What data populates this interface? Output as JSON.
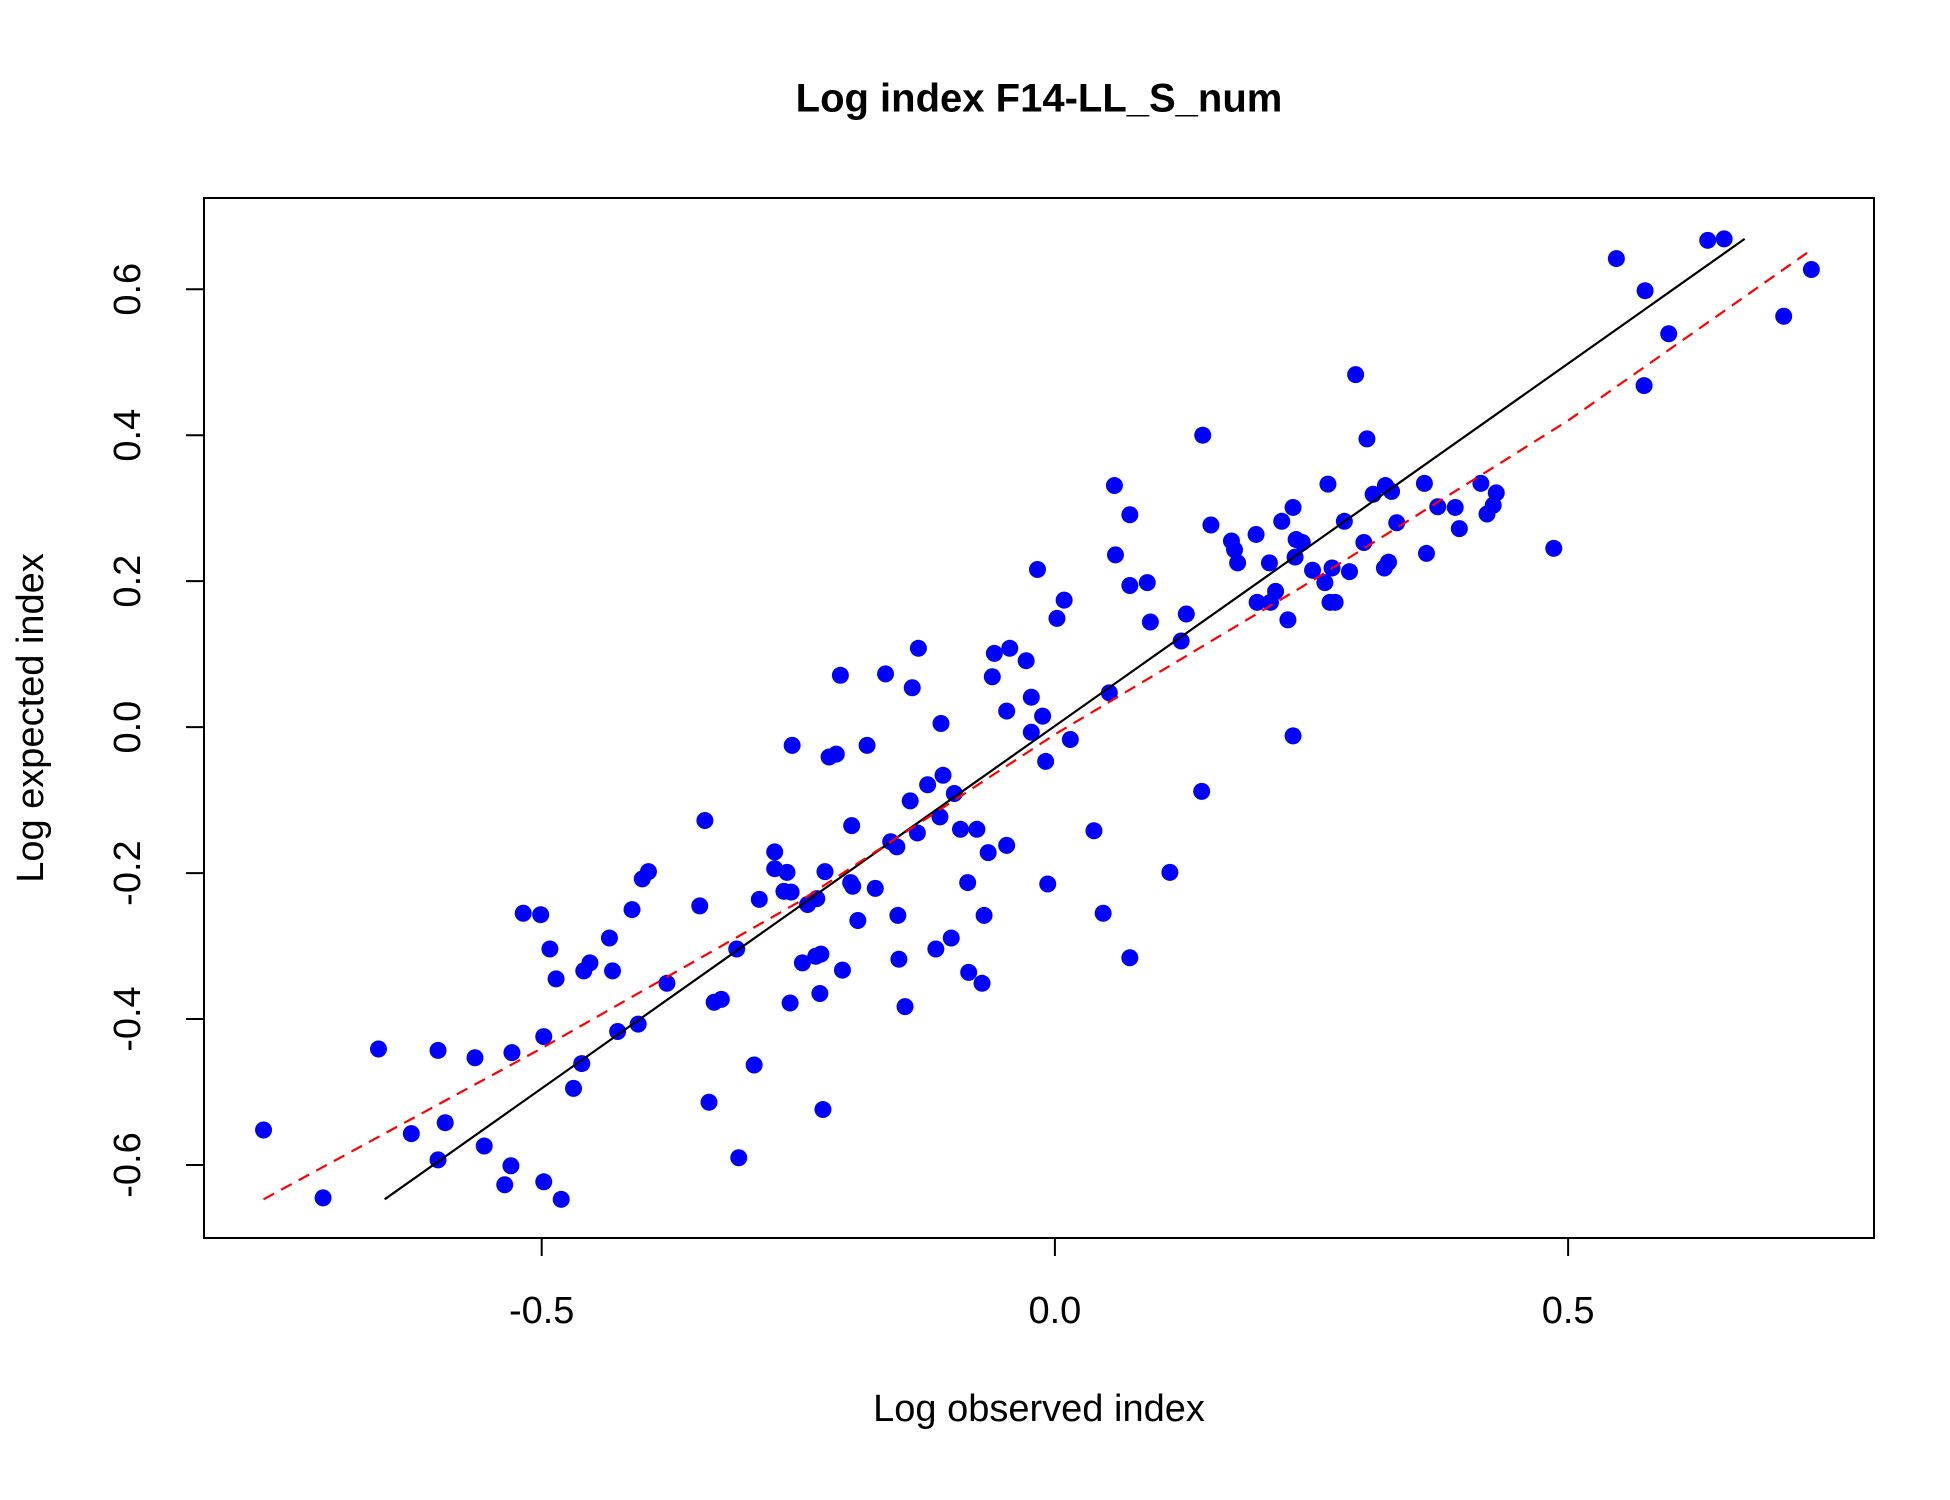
{
  "chart_data": {
    "type": "scatter",
    "title": "Log index F14-LL_S_num",
    "xlabel": "Log observed index",
    "ylabel": "Log expected index",
    "color": "#0000ff",
    "xlim": [
      -0.829,
      0.798
    ],
    "ylim": [
      -0.7,
      0.725
    ],
    "xticks": [
      -0.5,
      {
        "value": 0,
        "label": "0.0"
      },
      0.5
    ],
    "yticks": [
      -0.6,
      -0.4,
      -0.2,
      {
        "value": 0,
        "label": "0.0"
      },
      0.2,
      0.4,
      0.6
    ],
    "x": [
      -0.771,
      -0.713,
      -0.659,
      -0.627,
      -0.601,
      -0.601,
      -0.594,
      -0.565,
      -0.556,
      -0.536,
      -0.53,
      -0.529,
      -0.518,
      -0.501,
      -0.498,
      -0.498,
      -0.492,
      -0.486,
      -0.481,
      -0.469,
      -0.461,
      -0.459,
      -0.453,
      -0.434,
      -0.431,
      -0.426,
      -0.412,
      -0.406,
      -0.402,
      -0.396,
      -0.378,
      -0.346,
      -0.341,
      -0.337,
      -0.332,
      -0.325,
      -0.31,
      -0.308,
      -0.293,
      -0.288,
      -0.273,
      -0.273,
      -0.264,
      -0.261,
      -0.258,
      -0.257,
      -0.256,
      -0.246,
      -0.241,
      -0.233,
      -0.232,
      -0.229,
      -0.228,
      -0.226,
      -0.224,
      -0.22,
      -0.213,
      -0.209,
      -0.207,
      -0.199,
      -0.197,
      -0.198,
      -0.192,
      -0.183,
      -0.175,
      -0.165,
      -0.16,
      -0.154,
      -0.153,
      -0.152,
      -0.146,
      -0.141,
      -0.139,
      -0.134,
      -0.133,
      -0.124,
      -0.116,
      -0.112,
      -0.111,
      -0.109,
      -0.101,
      -0.098,
      -0.092,
      -0.085,
      -0.084,
      -0.076,
      -0.071,
      -0.069,
      -0.065,
      -0.061,
      -0.059,
      -0.047,
      -0.047,
      -0.044,
      -0.028,
      -0.023,
      -0.023,
      -0.017,
      -0.012,
      -0.009,
      -0.007,
      0.002,
      0.009,
      0.015,
      0.038,
      0.047,
      0.053,
      0.058,
      0.059,
      0.073,
      0.073,
      0.073,
      0.09,
      0.093,
      0.112,
      0.123,
      0.128,
      0.143,
      0.144,
      0.152,
      0.172,
      0.175,
      0.178,
      0.196,
      0.197,
      0.209,
      0.21,
      0.215,
      0.221,
      0.227,
      0.232,
      0.232,
      0.234,
      0.235,
      0.241,
      0.251,
      0.263,
      0.266,
      0.268,
      0.27,
      0.273,
      0.282,
      0.287,
      0.293,
      0.301,
      0.304,
      0.31,
      0.321,
      0.322,
      0.325,
      0.328,
      0.333,
      0.36,
      0.362,
      0.373,
      0.39,
      0.394,
      0.415,
      0.421,
      0.427,
      0.43,
      0.486,
      0.547,
      0.574,
      0.575,
      0.598,
      0.636,
      0.652,
      0.71,
      0.737
    ],
    "y": [
      -0.552,
      -0.645,
      -0.441,
      -0.557,
      -0.443,
      -0.593,
      -0.542,
      -0.453,
      -0.574,
      -0.627,
      -0.601,
      -0.446,
      -0.255,
      -0.257,
      -0.623,
      -0.424,
      -0.304,
      -0.345,
      -0.647,
      -0.495,
      -0.461,
      -0.334,
      -0.323,
      -0.289,
      -0.334,
      -0.417,
      -0.25,
      -0.407,
      -0.208,
      -0.198,
      -0.351,
      -0.245,
      -0.128,
      -0.514,
      -0.377,
      -0.373,
      -0.304,
      -0.59,
      -0.463,
      -0.236,
      -0.171,
      -0.194,
      -0.225,
      -0.199,
      -0.378,
      -0.226,
      -0.025,
      -0.323,
      -0.243,
      -0.314,
      -0.235,
      -0.365,
      -0.311,
      -0.524,
      -0.198,
      -0.041,
      -0.037,
      0.071,
      -0.333,
      -0.213,
      -0.218,
      -0.135,
      -0.265,
      -0.025,
      -0.221,
      0.073,
      -0.157,
      -0.164,
      -0.258,
      -0.318,
      -0.383,
      -0.101,
      0.054,
      -0.145,
      0.108,
      -0.079,
      -0.304,
      -0.123,
      0.005,
      -0.066,
      -0.289,
      -0.091,
      -0.14,
      -0.213,
      -0.336,
      -0.14,
      -0.351,
      -0.258,
      -0.172,
      0.069,
      0.101,
      -0.162,
      0.022,
      0.108,
      0.091,
      0.041,
      -0.007,
      0.216,
      0.015,
      -0.047,
      -0.215,
      0.149,
      0.174,
      -0.017,
      -0.142,
      -0.255,
      0.047,
      0.331,
      0.236,
      0.291,
      0.194,
      -0.316,
      0.198,
      0.144,
      -0.199,
      0.118,
      0.155,
      -0.088,
      0.4,
      0.277,
      0.255,
      0.243,
      0.225,
      0.264,
      0.171,
      0.225,
      0.171,
      0.186,
      0.282,
      0.147,
      0.301,
      -0.012,
      0.233,
      0.257,
      0.253,
      0.215,
      0.198,
      0.333,
      0.171,
      0.218,
      0.171,
      0.282,
      0.213,
      0.483,
      0.253,
      0.395,
      0.319,
      0.218,
      0.331,
      0.226,
      0.323,
      0.28,
      0.334,
      0.238,
      0.302,
      0.301,
      0.272,
      0.334,
      0.292,
      0.304,
      0.321,
      0.245,
      0.642,
      0.468,
      0.598,
      0.539,
      0.667,
      0.669,
      0.563,
      0.627
    ],
    "lines": [
      {
        "color": "#000000",
        "dashed": false,
        "x": [
          -0.653,
          0.672
        ],
        "y": [
          -0.647,
          0.669
        ]
      },
      {
        "color": "#ff0000",
        "dashed": true,
        "x": [
          -0.771,
          -0.5,
          -0.25,
          0,
          0.25,
          0.5,
          0.737
        ],
        "y": [
          -0.647,
          -0.44,
          -0.24,
          -0.01,
          0.2,
          0.42,
          0.654
        ]
      }
    ]
  }
}
